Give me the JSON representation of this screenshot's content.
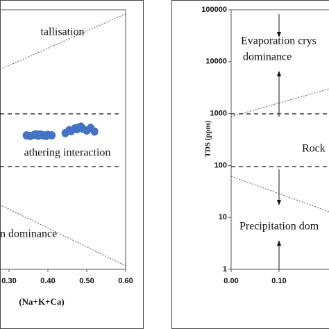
{
  "chart_data": [
    {
      "type": "scatter",
      "x_label": "(Na+K+Ca)",
      "annotations": [
        "tallisation",
        "athering interaction",
        "n dominance"
      ],
      "xlim": [
        0.28,
        0.6
      ],
      "xticks": [
        {
          "value": 0.3,
          "label": "0.30"
        },
        {
          "value": 0.4,
          "label": "0.40"
        },
        {
          "value": 0.5,
          "label": "0.50"
        },
        {
          "value": 0.6,
          "label": "0.60"
        }
      ],
      "ylim": [
        1,
        100000
      ],
      "log_y": true,
      "series": [
        {
          "name": null,
          "color": "#4472c4",
          "x": [
            0.345,
            0.355,
            0.365,
            0.37,
            0.375,
            0.38,
            0.385,
            0.39,
            0.395,
            0.4,
            0.41,
            0.445,
            0.455,
            0.46,
            0.47,
            0.475,
            0.48,
            0.485,
            0.49,
            0.5,
            0.51,
            0.52
          ],
          "values": [
            380,
            370,
            390,
            400,
            375,
            395,
            385,
            380,
            370,
            390,
            380,
            420,
            480,
            460,
            520,
            500,
            540,
            560,
            510,
            470,
            530,
            450
          ]
        }
      ]
    },
    {
      "type": "scatter",
      "y_label": "TDS (ppm)",
      "annotations": [
        "Evaporation crys",
        "dominance",
        "Rock",
        "Precipitation dom"
      ],
      "xlim": [
        0,
        0.2
      ],
      "xticks": [
        {
          "value": 0,
          "label": "0.00"
        },
        {
          "value": 0.1,
          "label": "0.10"
        }
      ],
      "ylim": [
        1,
        100000
      ],
      "log_y": true,
      "yticks": [
        {
          "value": 1,
          "label": "1"
        },
        {
          "value": 10,
          "label": "10"
        },
        {
          "value": 100,
          "label": "100"
        },
        {
          "value": 1000,
          "label": "1000"
        },
        {
          "value": 10000,
          "label": "10000"
        },
        {
          "value": 100000,
          "label": "100000"
        }
      ]
    }
  ]
}
